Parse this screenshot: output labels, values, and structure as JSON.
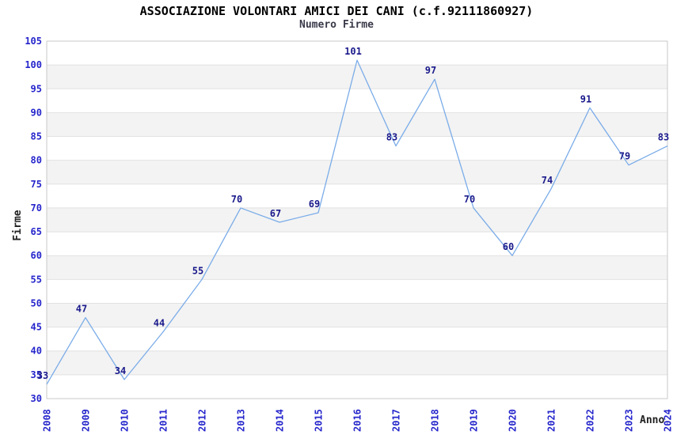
{
  "header": {
    "title": "ASSOCIAZIONE VOLONTARI AMICI DEI CANI (c.f.92111860927)",
    "subtitle": "Numero Firme"
  },
  "chart_data": {
    "type": "line",
    "title": "ASSOCIAZIONE VOLONTARI AMICI DEI CANI (c.f.92111860927)",
    "subtitle": "Numero Firme",
    "xlabel": "Anno",
    "ylabel": "Firme",
    "categories": [
      "2008",
      "2009",
      "2010",
      "2011",
      "2012",
      "2013",
      "2014",
      "2015",
      "2016",
      "2017",
      "2018",
      "2019",
      "2020",
      "2021",
      "2022",
      "2023",
      "2024"
    ],
    "values": [
      33,
      47,
      34,
      44,
      55,
      70,
      67,
      69,
      101,
      83,
      97,
      70,
      60,
      74,
      91,
      79,
      83
    ],
    "ylim": [
      30,
      105
    ],
    "ytick_step": 5,
    "grid": true,
    "band_style": "alternating horizontal 5-unit bands, white and light gray",
    "legend_position": "none",
    "point_labels_visible": true
  },
  "colors": {
    "line": "#7aace8",
    "tick_label": "#2626cc",
    "data_label": "#1a1a8c",
    "band_gray": "#f3f3f3",
    "band_white": "#ffffff",
    "gridline": "#e2e2e2",
    "plot_border": "#c9c9c9",
    "title": "#000000",
    "subtitle": "#3a3a4a",
    "axis_title": "#222222",
    "background": "#ffffff"
  }
}
